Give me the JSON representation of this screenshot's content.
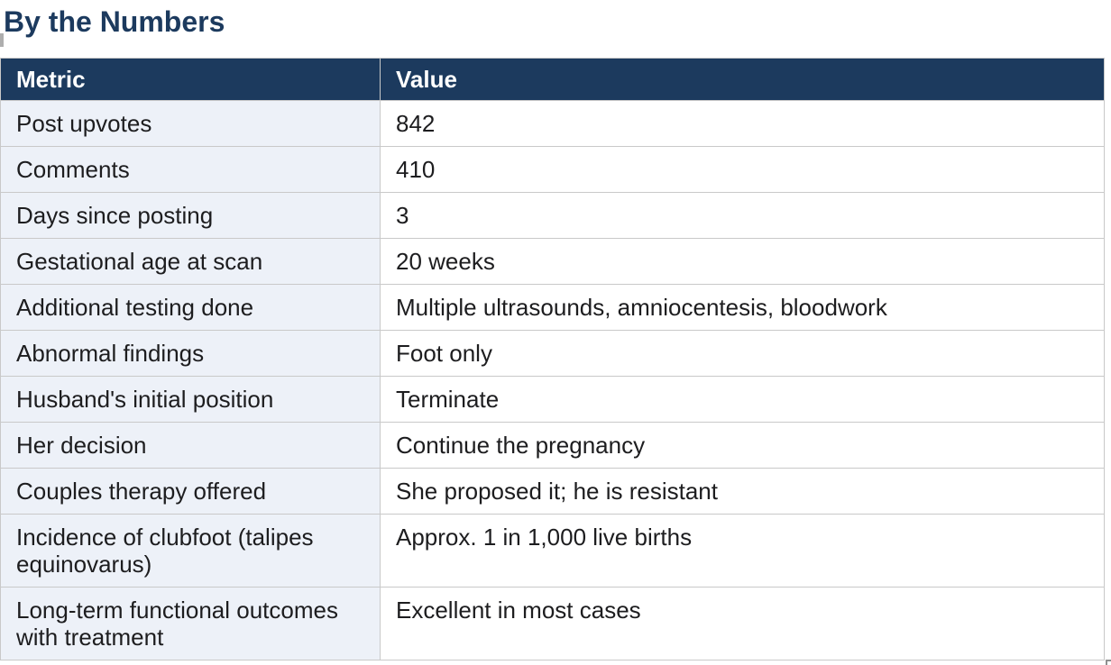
{
  "page": {
    "title": "By the Numbers"
  },
  "table": {
    "columns": [
      {
        "label": "Metric"
      },
      {
        "label": "Value"
      }
    ],
    "rows": [
      {
        "metric": "Post upvotes",
        "value": "842"
      },
      {
        "metric": "Comments",
        "value": "410"
      },
      {
        "metric": "Days since posting",
        "value": "3"
      },
      {
        "metric": "Gestational age at scan",
        "value": "20 weeks"
      },
      {
        "metric": "Additional testing done",
        "value": "Multiple ultrasounds, amniocentesis, bloodwork"
      },
      {
        "metric": "Abnormal findings",
        "value": "Foot only"
      },
      {
        "metric": "Husband's initial position",
        "value": "Terminate"
      },
      {
        "metric": "Her decision",
        "value": "Continue the pregnancy"
      },
      {
        "metric": "Couples therapy offered",
        "value": "She proposed it; he is resistant"
      },
      {
        "metric": "Incidence of clubfoot (talipes equinovarus)",
        "value": "Approx. 1 in 1,000 live births"
      },
      {
        "metric": "Long-term functional outcomes with treatment",
        "value": "Excellent in most cases"
      }
    ]
  },
  "colors": {
    "header_bg": "#1c3a5e",
    "title": "#1c3a5e",
    "metric_cell_bg": "#edf1f8",
    "border": "#c9c9c9",
    "text": "#1d1d1f",
    "header_text": "#ffffff"
  }
}
